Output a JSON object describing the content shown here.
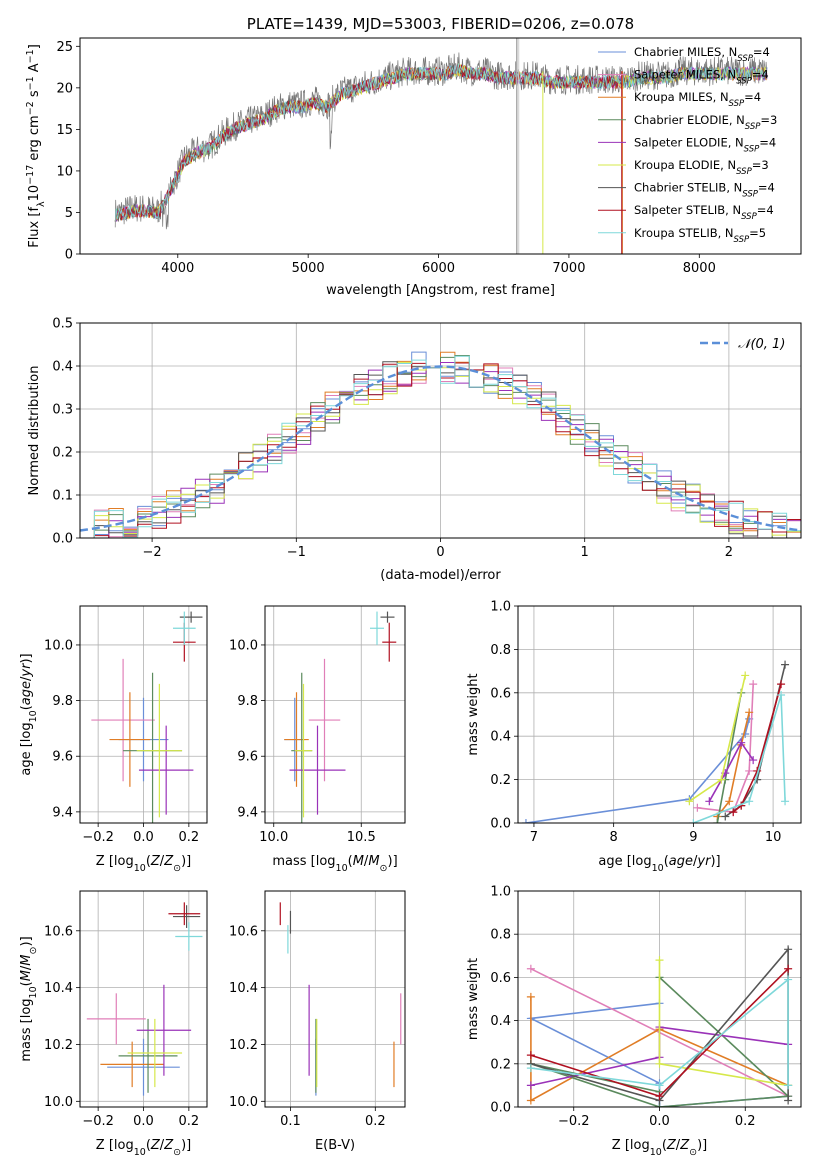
{
  "colors": {
    "chabrier_miles": "#6a8fd8",
    "salpeter_miles": "#e07fb8",
    "kroupa_miles": "#e07d26",
    "chabrier_elodie": "#5b8a5d",
    "salpeter_elodie": "#9a32b8",
    "kroupa_elodie": "#d6e84a",
    "chabrier_stelib": "#555555",
    "salpeter_stelib": "#b01020",
    "kroupa_stelib": "#7fd8da",
    "gauss": "#5b8fd8"
  },
  "chart_data": [
    {
      "type": "line",
      "title": "PLATE=1439, MJD=53003, FIBERID=0206, z=0.078",
      "xlabel": "wavelength [Angstrom, rest frame]",
      "ylabel": "Flux [fλ10⁻¹⁷ erg cm⁻² s⁻¹ A⁻¹]",
      "xlim": [
        3250,
        8780
      ],
      "ylim": [
        0,
        26
      ],
      "xticks": [
        4000,
        5000,
        6000,
        7000,
        8000
      ],
      "yticks": [
        0,
        5,
        10,
        15,
        20,
        25
      ],
      "legend_position": "top-right",
      "data_series": [
        {
          "name": "data",
          "x": [
            3550,
            3650,
            3750,
            3850,
            3950,
            4050,
            4150,
            4250,
            4350,
            4450,
            4550,
            4650,
            4750,
            4850,
            4950,
            5050,
            5150,
            5250,
            5350,
            5450,
            5550,
            5650,
            5750,
            5850,
            5950,
            6050,
            6150,
            6250,
            6350,
            6450,
            6550,
            6650,
            6750,
            6850,
            6950,
            7050,
            7150,
            7250,
            7350,
            7450,
            7550,
            7650,
            7750,
            7850,
            7950,
            8050,
            8150,
            8250,
            8350,
            8450,
            8550
          ],
          "y": [
            5,
            5.5,
            5.5,
            5.2,
            8,
            11.5,
            12.5,
            13,
            14.5,
            15.5,
            16,
            16.5,
            17.5,
            18,
            18,
            18.5,
            18,
            19.5,
            20,
            20.5,
            21,
            21.5,
            22,
            22,
            22,
            22,
            22.5,
            22,
            22,
            21.5,
            21.5,
            21.5,
            21.5,
            21,
            21,
            21,
            21,
            21,
            21,
            21,
            21.5,
            21.5,
            21.5,
            22,
            22,
            22,
            22,
            22,
            22,
            22,
            22
          ]
        }
      ],
      "series": [
        {
          "name": "Chabrier MILES, N_SSP=4",
          "label_main": "Chabrier MILES, N",
          "label_sub": "SSP",
          "label_tail": "=4",
          "color_key": "chabrier_miles"
        },
        {
          "name": "Salpeter MILES, N_SSP=4",
          "label_main": "Salpeter MILES, N",
          "label_sub": "SSP",
          "label_tail": "=4",
          "color_key": "salpeter_miles"
        },
        {
          "name": "Kroupa MILES, N_SSP=4",
          "label_main": "Kroupa MILES, N",
          "label_sub": "SSP",
          "label_tail": "=4",
          "color_key": "kroupa_miles"
        },
        {
          "name": "Chabrier ELODIE, N_SSP=3",
          "label_main": "Chabrier ELODIE, N",
          "label_sub": "SSP",
          "label_tail": "=3",
          "color_key": "chabrier_elodie"
        },
        {
          "name": "Salpeter ELODIE, N_SSP=4",
          "label_main": "Salpeter ELODIE, N",
          "label_sub": "SSP",
          "label_tail": "=4",
          "color_key": "salpeter_elodie"
        },
        {
          "name": "Kroupa ELODIE, N_SSP=3",
          "label_main": "Kroupa ELODIE, N",
          "label_sub": "SSP",
          "label_tail": "=3",
          "color_key": "kroupa_elodie"
        },
        {
          "name": "Chabrier STELIB, N_SSP=4",
          "label_main": "Chabrier STELIB, N",
          "label_sub": "SSP",
          "label_tail": "=4",
          "color_key": "chabrier_stelib"
        },
        {
          "name": "Salpeter STELIB, N_SSP=4",
          "label_main": "Salpeter STELIB, N",
          "label_sub": "SSP",
          "label_tail": "=4",
          "color_key": "salpeter_stelib"
        },
        {
          "name": "Kroupa STELIB, N_SSP=5",
          "label_main": "Kroupa STELIB, N",
          "label_sub": "SSP",
          "label_tail": "=5",
          "color_key": "kroupa_stelib"
        }
      ]
    },
    {
      "type": "bar",
      "xlabel": "(data-model)/error",
      "ylabel": "Normed distribution",
      "xlim": [
        -2.5,
        2.5
      ],
      "ylim": [
        0,
        0.5
      ],
      "xticks": [
        -2,
        -1,
        0,
        1,
        2
      ],
      "xtick_labels": [
        "−2",
        "−1",
        "0",
        "1",
        "2"
      ],
      "yticks": [
        0.0,
        0.1,
        0.2,
        0.3,
        0.4,
        0.5
      ],
      "ytick_labels": [
        "0.0",
        "0.1",
        "0.2",
        "0.3",
        "0.4",
        "0.5"
      ],
      "grid": true,
      "legend_position": "top-right",
      "legend_label": "𝒩(0, 1)",
      "gaussian": {
        "mean": 0,
        "sigma": 1,
        "name": "N(0,1)"
      },
      "bin_width": 0.1
    },
    {
      "type": "scatter",
      "xlabel": "Z [log10(Z/Z⊙)]",
      "ylabel": "age  [log10(age/yr)]",
      "xlim": [
        -0.28,
        0.28
      ],
      "ylim": [
        9.36,
        10.14
      ],
      "xticks": [
        -0.2,
        0.0,
        0.2
      ],
      "xtick_labels": [
        "−0.2",
        "0.0",
        "0.2"
      ],
      "yticks": [
        9.4,
        9.6,
        9.8,
        10.0
      ],
      "ytick_labels": [
        "9.4",
        "9.6",
        "9.8",
        "10.0"
      ],
      "points": [
        {
          "c": "chabrier_miles",
          "x": 0.0,
          "xe": 0.11,
          "y": 9.66,
          "ye": 0.15
        },
        {
          "c": "salpeter_miles",
          "x": -0.09,
          "xe": 0.14,
          "y": 9.73,
          "ye": 0.22
        },
        {
          "c": "kroupa_miles",
          "x": -0.06,
          "xe": 0.09,
          "y": 9.66,
          "ye": 0.17
        },
        {
          "c": "chabrier_elodie",
          "x": 0.04,
          "xe": 0.13,
          "y": 9.62,
          "ye": 0.28
        },
        {
          "c": "salpeter_elodie",
          "x": 0.1,
          "xe": 0.12,
          "y": 9.55,
          "ye": 0.16
        },
        {
          "c": "kroupa_elodie",
          "x": 0.07,
          "xe": 0.1,
          "y": 9.62,
          "ye": 0.24
        },
        {
          "c": "chabrier_stelib",
          "x": 0.21,
          "xe": 0.05,
          "y": 10.1,
          "ye": 0.02
        },
        {
          "c": "salpeter_stelib",
          "x": 0.18,
          "xe": 0.05,
          "y": 10.01,
          "ye": 0.07
        },
        {
          "c": "kroupa_stelib",
          "x": 0.18,
          "xe": 0.05,
          "y": 10.06,
          "ye": 0.06
        }
      ]
    },
    {
      "type": "scatter",
      "xlabel": "mass [log10(M/M⊙)]",
      "ylabel": "",
      "xlim": [
        9.95,
        10.75
      ],
      "ylim": [
        9.36,
        10.14
      ],
      "xticks": [
        10.0,
        10.5
      ],
      "xtick_labels": [
        "10.0",
        "10.5"
      ],
      "yticks": [
        9.4,
        9.6,
        9.8,
        10.0
      ],
      "ytick_labels": [
        "9.4",
        "9.6",
        "9.8",
        "10.0"
      ],
      "points": [
        {
          "c": "chabrier_miles",
          "x": 10.12,
          "xe": 0.06,
          "y": 9.66,
          "ye": 0.15
        },
        {
          "c": "salpeter_miles",
          "x": 10.29,
          "xe": 0.09,
          "y": 9.73,
          "ye": 0.22
        },
        {
          "c": "kroupa_miles",
          "x": 10.13,
          "xe": 0.07,
          "y": 9.66,
          "ye": 0.17
        },
        {
          "c": "chabrier_elodie",
          "x": 10.16,
          "xe": 0.06,
          "y": 9.62,
          "ye": 0.28
        },
        {
          "c": "salpeter_elodie",
          "x": 10.25,
          "xe": 0.16,
          "y": 9.55,
          "ye": 0.16
        },
        {
          "c": "kroupa_elodie",
          "x": 10.17,
          "xe": 0.05,
          "y": 9.62,
          "ye": 0.24
        },
        {
          "c": "chabrier_stelib",
          "x": 10.65,
          "xe": 0.04,
          "y": 10.1,
          "ye": 0.02
        },
        {
          "c": "salpeter_stelib",
          "x": 10.66,
          "xe": 0.04,
          "y": 10.01,
          "ye": 0.07
        },
        {
          "c": "kroupa_stelib",
          "x": 10.59,
          "xe": 0.04,
          "y": 10.06,
          "ye": 0.06
        }
      ]
    },
    {
      "type": "line",
      "xlabel": "age  [log10(age/yr)]",
      "ylabel": "mass weight",
      "xlim": [
        6.8,
        10.35
      ],
      "ylim": [
        0.0,
        1.0
      ],
      "xticks": [
        7,
        8,
        9,
        10
      ],
      "xtick_labels": [
        "7",
        "8",
        "9",
        "10"
      ],
      "yticks": [
        0.0,
        0.2,
        0.4,
        0.6,
        0.8,
        1.0
      ],
      "ytick_labels": [
        "0.0",
        "0.2",
        "0.4",
        "0.6",
        "0.8",
        "1.0"
      ],
      "series": [
        {
          "c": "chabrier_miles",
          "x": [
            6.9,
            8.95,
            9.65,
            9.7
          ],
          "y": [
            0.0,
            0.11,
            0.41,
            0.48
          ]
        },
        {
          "c": "salpeter_miles",
          "x": [
            9.05,
            9.5,
            9.7,
            9.75
          ],
          "y": [
            0.07,
            0.05,
            0.24,
            0.64
          ]
        },
        {
          "c": "kroupa_miles",
          "x": [
            9.3,
            9.45,
            9.6,
            9.7
          ],
          "y": [
            0.03,
            0.1,
            0.36,
            0.51
          ]
        },
        {
          "c": "chabrier_elodie",
          "x": [
            9.3,
            9.4,
            9.6
          ],
          "y": [
            0.0,
            0.2,
            0.6
          ]
        },
        {
          "c": "salpeter_elodie",
          "x": [
            9.2,
            9.4,
            9.6,
            9.75
          ],
          "y": [
            0.1,
            0.23,
            0.37,
            0.29
          ]
        },
        {
          "c": "kroupa_elodie",
          "x": [
            8.95,
            9.35,
            9.65
          ],
          "y": [
            0.1,
            0.2,
            0.68
          ]
        },
        {
          "c": "chabrier_stelib",
          "x": [
            9.4,
            9.6,
            9.8,
            10.15
          ],
          "y": [
            0.03,
            0.08,
            0.2,
            0.73
          ]
        },
        {
          "c": "salpeter_stelib",
          "x": [
            9.5,
            9.6,
            9.8,
            10.1
          ],
          "y": [
            0.05,
            0.08,
            0.24,
            0.64
          ]
        },
        {
          "c": "kroupa_stelib",
          "x": [
            9.0,
            9.7,
            10.1,
            10.15
          ],
          "y": [
            0.0,
            0.1,
            0.59,
            0.1
          ]
        }
      ]
    },
    {
      "type": "scatter",
      "xlabel": "Z [log10(Z/Z⊙)]",
      "ylabel": "mass [log10(M/M⊙)]",
      "xlim": [
        -0.28,
        0.28
      ],
      "ylim": [
        9.98,
        10.74
      ],
      "xticks": [
        -0.2,
        0.0,
        0.2
      ],
      "xtick_labels": [
        "−0.2",
        "0.0",
        "0.2"
      ],
      "yticks": [
        10.0,
        10.2,
        10.4,
        10.6
      ],
      "ytick_labels": [
        "10.0",
        "10.2",
        "10.4",
        "10.6"
      ],
      "points": [
        {
          "c": "chabrier_miles",
          "x": 0.0,
          "xe": 0.16,
          "y": 10.12,
          "ye": 0.1
        },
        {
          "c": "salpeter_miles",
          "x": -0.12,
          "xe": 0.13,
          "y": 10.29,
          "ye": 0.09
        },
        {
          "c": "kroupa_miles",
          "x": -0.05,
          "xe": 0.14,
          "y": 10.13,
          "ye": 0.08
        },
        {
          "c": "chabrier_elodie",
          "x": 0.02,
          "xe": 0.13,
          "y": 10.16,
          "ye": 0.13
        },
        {
          "c": "salpeter_elodie",
          "x": 0.09,
          "xe": 0.12,
          "y": 10.25,
          "ye": 0.16
        },
        {
          "c": "kroupa_elodie",
          "x": 0.05,
          "xe": 0.12,
          "y": 10.17,
          "ye": 0.12
        },
        {
          "c": "chabrier_stelib",
          "x": 0.19,
          "xe": 0.06,
          "y": 10.65,
          "ye": 0.04
        },
        {
          "c": "salpeter_stelib",
          "x": 0.18,
          "xe": 0.07,
          "y": 10.66,
          "ye": 0.04
        },
        {
          "c": "kroupa_stelib",
          "x": 0.2,
          "xe": 0.06,
          "y": 10.58,
          "ye": 0.05
        }
      ]
    },
    {
      "type": "scatter",
      "xlabel": "E(B-V)",
      "ylabel": "",
      "xlim": [
        0.07,
        0.235
      ],
      "ylim": [
        9.98,
        10.74
      ],
      "xticks": [
        0.1,
        0.2
      ],
      "xtick_labels": [
        "0.1",
        "0.2"
      ],
      "yticks": [
        10.0,
        10.2,
        10.4,
        10.6
      ],
      "ytick_labels": [
        "10.0",
        "10.2",
        "10.4",
        "10.6"
      ],
      "points": [
        {
          "c": "chabrier_miles",
          "x": 0.13,
          "y": 10.12,
          "ye": 0.1
        },
        {
          "c": "salpeter_miles",
          "x": 0.23,
          "y": 10.29,
          "ye": 0.09
        },
        {
          "c": "kroupa_miles",
          "x": 0.222,
          "y": 10.13,
          "ye": 0.08
        },
        {
          "c": "chabrier_elodie",
          "x": 0.13,
          "y": 10.16,
          "ye": 0.13
        },
        {
          "c": "salpeter_elodie",
          "x": 0.122,
          "y": 10.25,
          "ye": 0.16
        },
        {
          "c": "kroupa_elodie",
          "x": 0.131,
          "y": 10.17,
          "ye": 0.12
        },
        {
          "c": "chabrier_stelib",
          "x": 0.1,
          "y": 10.63,
          "ye": 0.04
        },
        {
          "c": "salpeter_stelib",
          "x": 0.088,
          "y": 10.66,
          "ye": 0.04
        },
        {
          "c": "kroupa_stelib",
          "x": 0.097,
          "y": 10.57,
          "ye": 0.05
        }
      ]
    },
    {
      "type": "line",
      "xlabel": "Z [log10(Z/Z⊙)]",
      "ylabel": "mass weight",
      "xlim": [
        -0.33,
        0.33
      ],
      "ylim": [
        0.0,
        1.0
      ],
      "xticks": [
        -0.2,
        0.0,
        0.2
      ],
      "xtick_labels": [
        "−0.2",
        "0.0",
        "0.2"
      ],
      "yticks": [
        0.0,
        0.2,
        0.4,
        0.6,
        0.8,
        1.0
      ],
      "ytick_labels": [
        "0.0",
        "0.2",
        "0.4",
        "0.6",
        "0.8",
        "1.0"
      ],
      "series": [
        {
          "c": "chabrier_miles",
          "x": [
            0.0,
            -0.3,
            0.0,
            0.0,
            0.3
          ],
          "y": [
            0.48,
            0.41,
            0.11,
            0.0,
            0.05
          ]
        },
        {
          "c": "salpeter_miles",
          "x": [
            -0.3,
            0.3
          ],
          "y": [
            0.64,
            0.05
          ]
        },
        {
          "c": "kroupa_miles",
          "x": [
            -0.3,
            -0.3,
            0.0,
            0.3
          ],
          "y": [
            0.51,
            0.03,
            0.36,
            0.1
          ]
        },
        {
          "c": "chabrier_elodie",
          "x": [
            0.0,
            0.3,
            0.0,
            -0.3,
            0.0
          ],
          "y": [
            0.6,
            0.05,
            0.0,
            0.2,
            0.07
          ]
        },
        {
          "c": "salpeter_elodie",
          "x": [
            -0.3,
            0.0,
            0.0,
            0.3
          ],
          "y": [
            0.1,
            0.23,
            0.37,
            0.29
          ]
        },
        {
          "c": "kroupa_elodie",
          "x": [
            0.0,
            0.0,
            0.3
          ],
          "y": [
            0.68,
            0.2,
            0.1
          ]
        },
        {
          "c": "chabrier_stelib",
          "x": [
            -0.3,
            0.0,
            0.3,
            0.3
          ],
          "y": [
            0.2,
            0.03,
            0.73,
            0.03
          ]
        },
        {
          "c": "salpeter_stelib",
          "x": [
            -0.3,
            0.0,
            0.3
          ],
          "y": [
            0.24,
            0.05,
            0.64
          ]
        },
        {
          "c": "kroupa_stelib",
          "x": [
            -0.3,
            0.0,
            0.3,
            0.3
          ],
          "y": [
            0.18,
            0.1,
            0.59,
            0.1
          ]
        }
      ]
    }
  ]
}
